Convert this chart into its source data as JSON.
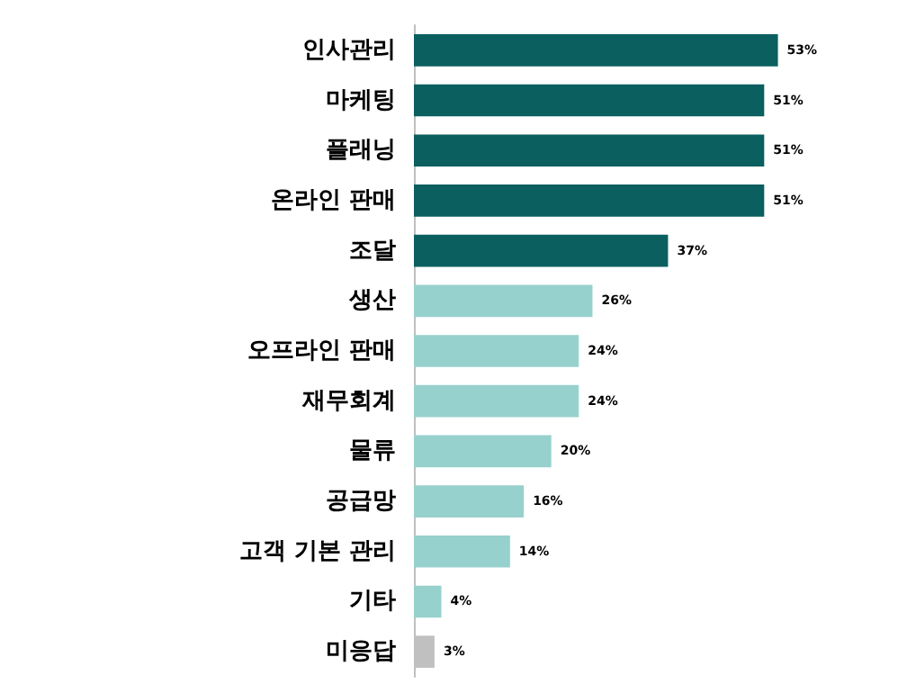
{
  "chart_data": {
    "type": "bar",
    "orientation": "horizontal",
    "categories": [
      "인사관리",
      "마케팅",
      "플래닝",
      "온라인 판매",
      "조달",
      "생산",
      "오프라인 판매",
      "재무회계",
      "물류",
      "공급망",
      "고객 기본 관리",
      "기타",
      "미응답"
    ],
    "values": [
      53,
      51,
      51,
      51,
      37,
      26,
      24,
      24,
      20,
      16,
      14,
      4,
      3
    ],
    "value_labels": [
      "53%",
      "51%",
      "51%",
      "51%",
      "37%",
      "26%",
      "24%",
      "24%",
      "20%",
      "16%",
      "14%",
      "4%",
      "3%"
    ],
    "colors": [
      "#0b5f5f",
      "#0b5f5f",
      "#0b5f5f",
      "#0b5f5f",
      "#0b5f5f",
      "#97d1cd",
      "#97d1cd",
      "#97d1cd",
      "#97d1cd",
      "#97d1cd",
      "#97d1cd",
      "#97d1cd",
      "#c0c0c0"
    ],
    "tick_labels": "y"
  }
}
